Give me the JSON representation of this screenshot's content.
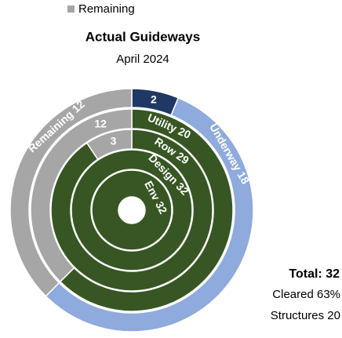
{
  "chart_data": {
    "type": "sunburst",
    "title": "Actual Guideways",
    "subtitle": "April 2024",
    "legend": [
      {
        "name": "Remaining",
        "color": "#a6a6a6"
      }
    ],
    "rings": [
      {
        "segments": [
          {
            "value": 2,
            "color": "#203864"
          },
          {
            "name": "Underway",
            "value": 18,
            "color": "#8faadc"
          },
          {
            "name": "Remaining",
            "value": 12,
            "color": "#a6a6a6"
          }
        ]
      },
      {
        "segments": [
          {
            "name": "Utility",
            "value": 20,
            "color": "#375623"
          },
          {
            "value": 12,
            "color": "#a6a6a6"
          }
        ]
      },
      {
        "segments": [
          {
            "name": "Row",
            "value": 29,
            "color": "#375623"
          },
          {
            "value": 3,
            "color": "#a6a6a6"
          }
        ]
      },
      {
        "segments": [
          {
            "name": "Design",
            "value": 32,
            "color": "#375623"
          }
        ]
      },
      {
        "segments": [
          {
            "name": "Env",
            "value": 32,
            "color": "#375623"
          }
        ]
      }
    ],
    "annotations": [
      "Total: 32",
      "Cleared 63%",
      "Structures 20"
    ]
  }
}
